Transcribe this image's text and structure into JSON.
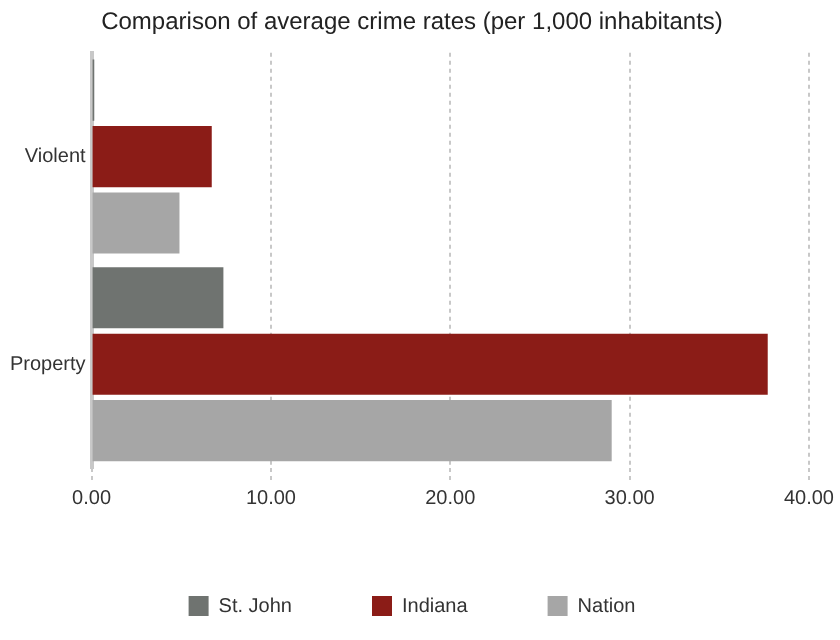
{
  "chart_data": {
    "type": "bar",
    "orientation": "horizontal",
    "title": "Comparison of average crime rates (per 1,000 inhabitants)",
    "categories": [
      "Violent",
      "Property"
    ],
    "series": [
      {
        "name": "St. John",
        "color": "#6f7370",
        "values": [
          0.15,
          7.35
        ]
      },
      {
        "name": "Indiana",
        "color": "#8b1c17",
        "values": [
          6.7,
          37.7
        ]
      },
      {
        "name": "Nation",
        "color": "#a6a6a6",
        "values": [
          4.9,
          29.0
        ]
      }
    ],
    "xlim": [
      0,
      40
    ],
    "xticks": [
      {
        "value": 0,
        "label": "0.00"
      },
      {
        "value": 10,
        "label": "10.00"
      },
      {
        "value": 20,
        "label": "20.00"
      },
      {
        "value": 30,
        "label": "30.00"
      },
      {
        "value": 40,
        "label": "40.00"
      }
    ],
    "grid": "x",
    "legend": "bottom"
  }
}
